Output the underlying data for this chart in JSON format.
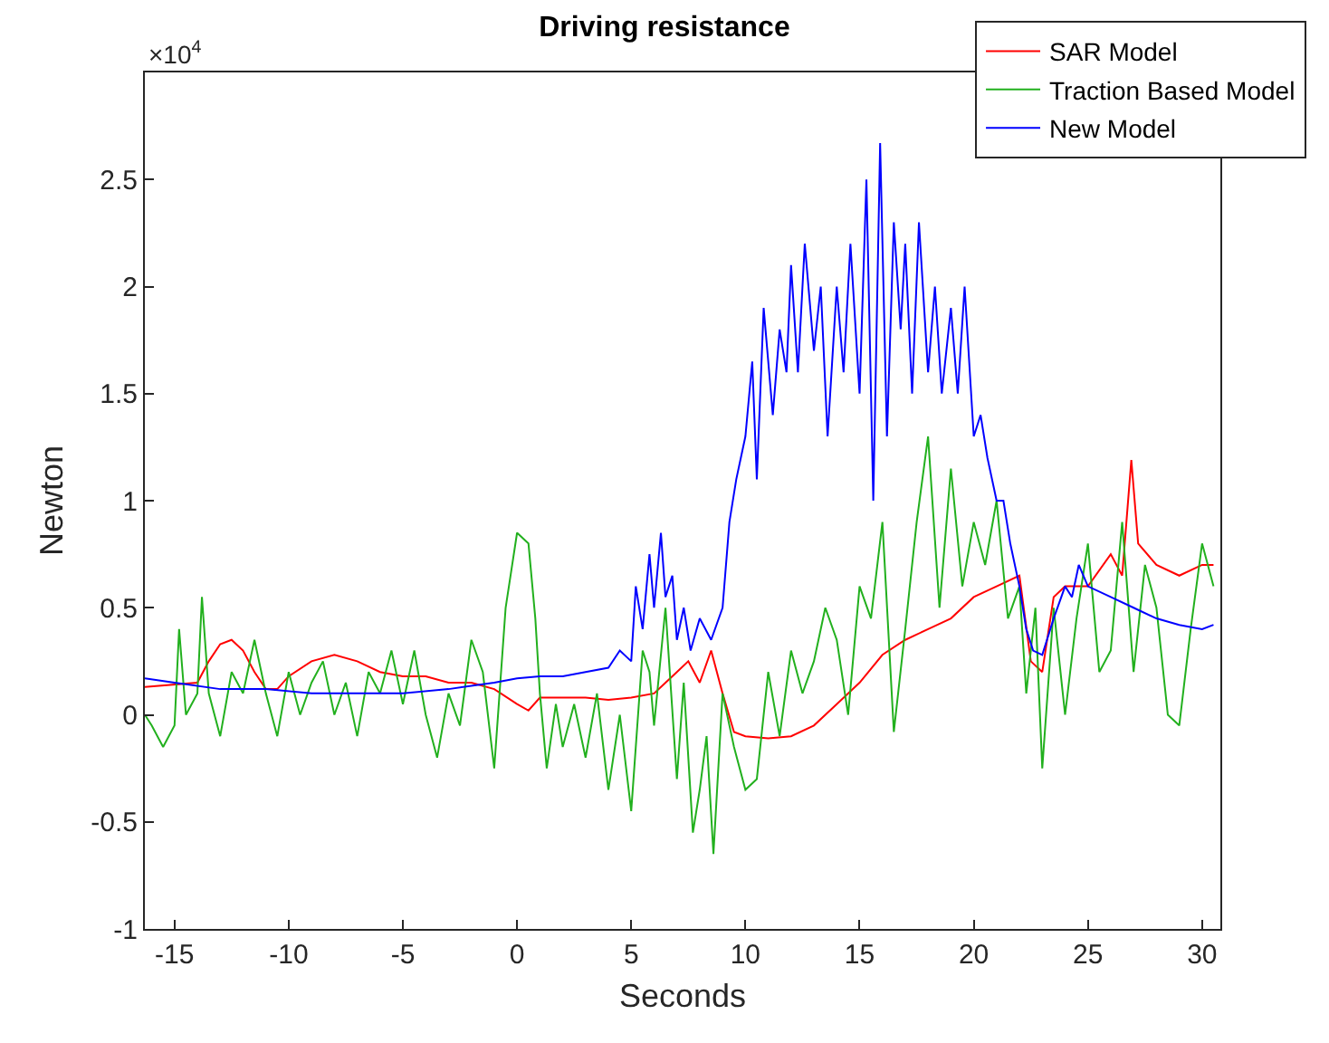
{
  "chart_data": {
    "type": "line",
    "title": "Driving resistance",
    "xlabel": "Seconds",
    "ylabel": "Newton",
    "annotations": [
      "×10$^{4}$"
    ],
    "xlim": [
      -16.3,
      30.8
    ],
    "xticks": [
      -15,
      -10,
      -5,
      0,
      5,
      10,
      15,
      20,
      25,
      30
    ],
    "ylim": [
      -1,
      3
    ],
    "yticks": [
      -1,
      -0.5,
      0,
      0.5,
      1,
      1.5,
      2,
      2.5
    ],
    "grid": false,
    "legend": "top right",
    "line_style": "solid",
    "marker": "none",
    "series": [
      {
        "name": "SAR Model",
        "color": "#ff0000",
        "x": [
          -16.3,
          -14,
          -13.5,
          -13,
          -12.5,
          -12,
          -11.5,
          -11,
          -10.5,
          -10,
          -9,
          -8,
          -7,
          -6,
          -5,
          -4,
          -3,
          -2,
          -1,
          0,
          0.5,
          1,
          2,
          3,
          4,
          5,
          6,
          7,
          7.5,
          8,
          8.5,
          9,
          9.5,
          10,
          11,
          12,
          13,
          14,
          15,
          16,
          17,
          18,
          19,
          20,
          21,
          22,
          22.5,
          23,
          23.5,
          24,
          25,
          26,
          26.5,
          26.9,
          27.2,
          28,
          29,
          30,
          30.5
        ],
        "values": [
          0.13,
          0.15,
          0.25,
          0.33,
          0.35,
          0.3,
          0.2,
          0.12,
          0.12,
          0.18,
          0.25,
          0.28,
          0.25,
          0.2,
          0.18,
          0.18,
          0.15,
          0.15,
          0.12,
          0.05,
          0.02,
          0.08,
          0.08,
          0.08,
          0.07,
          0.08,
          0.1,
          0.2,
          0.25,
          0.15,
          0.3,
          0.1,
          -0.08,
          -0.1,
          -0.11,
          -0.1,
          -0.05,
          0.05,
          0.15,
          0.28,
          0.35,
          0.4,
          0.45,
          0.55,
          0.6,
          0.65,
          0.25,
          0.2,
          0.55,
          0.6,
          0.6,
          0.75,
          0.65,
          1.19,
          0.8,
          0.7,
          0.65,
          0.7,
          0.7
        ]
      },
      {
        "name": "Traction Based Model",
        "color": "#22b01e",
        "x": [
          -16.3,
          -16,
          -15.5,
          -15,
          -14.8,
          -14.5,
          -14,
          -13.8,
          -13.5,
          -13,
          -12.5,
          -12,
          -11.5,
          -11,
          -10.5,
          -10,
          -9.5,
          -9,
          -8.5,
          -8,
          -7.5,
          -7,
          -6.5,
          -6,
          -5.5,
          -5,
          -4.5,
          -4,
          -3.5,
          -3,
          -2.5,
          -2,
          -1.5,
          -1,
          -0.5,
          0,
          0.5,
          0.8,
          1,
          1.3,
          1.7,
          2,
          2.5,
          3,
          3.5,
          4,
          4.5,
          5,
          5.5,
          5.8,
          6,
          6.5,
          7,
          7.3,
          7.7,
          8,
          8.3,
          8.6,
          9,
          9.5,
          10,
          10.5,
          11,
          11.5,
          12,
          12.5,
          13,
          13.5,
          14,
          14.5,
          15,
          15.5,
          16,
          16.5,
          17,
          17.5,
          18,
          18.5,
          19,
          19.5,
          20,
          20.5,
          21,
          21.5,
          22,
          22.3,
          22.7,
          23,
          23.5,
          24,
          24.5,
          25,
          25.5,
          26,
          26.5,
          27,
          27.5,
          28,
          28.5,
          29,
          29.5,
          30,
          30.5
        ],
        "values": [
          0,
          -0.05,
          -0.15,
          -0.05,
          0.4,
          0,
          0.1,
          0.55,
          0.1,
          -0.1,
          0.2,
          0.1,
          0.35,
          0.1,
          -0.1,
          0.2,
          0,
          0.15,
          0.25,
          0,
          0.15,
          -0.1,
          0.2,
          0.1,
          0.3,
          0.05,
          0.3,
          0,
          -0.2,
          0.1,
          -0.05,
          0.35,
          0.2,
          -0.25,
          0.5,
          0.85,
          0.8,
          0.45,
          0.1,
          -0.25,
          0.05,
          -0.15,
          0.05,
          -0.2,
          0.1,
          -0.35,
          0,
          -0.45,
          0.3,
          0.2,
          -0.05,
          0.5,
          -0.3,
          0.15,
          -0.55,
          -0.35,
          -0.1,
          -0.65,
          0.1,
          -0.15,
          -0.35,
          -0.3,
          0.2,
          -0.1,
          0.3,
          0.1,
          0.25,
          0.5,
          0.35,
          0,
          0.6,
          0.45,
          0.9,
          -0.08,
          0.4,
          0.9,
          1.3,
          0.5,
          1.15,
          0.6,
          0.9,
          0.7,
          1,
          0.45,
          0.6,
          0.1,
          0.5,
          -0.25,
          0.5,
          0,
          0.45,
          0.8,
          0.2,
          0.3,
          0.9,
          0.2,
          0.7,
          0.5,
          0,
          -0.05,
          0.4,
          0.8,
          0.6
        ]
      },
      {
        "name": "New Model",
        "color": "#0000ff",
        "x": [
          -16.3,
          -15,
          -13,
          -11,
          -9,
          -7,
          -5,
          -3,
          -1,
          0,
          1,
          2,
          3,
          4,
          4.5,
          5,
          5.2,
          5.5,
          5.8,
          6,
          6.3,
          6.5,
          6.8,
          7,
          7.3,
          7.6,
          8,
          8.5,
          9,
          9.3,
          9.6,
          10,
          10.3,
          10.5,
          10.8,
          11.2,
          11.5,
          11.8,
          12,
          12.3,
          12.6,
          13,
          13.3,
          13.6,
          14,
          14.3,
          14.6,
          15,
          15.3,
          15.6,
          15.9,
          16.2,
          16.5,
          16.8,
          17,
          17.3,
          17.6,
          18,
          18.3,
          18.6,
          19,
          19.3,
          19.6,
          20,
          20.3,
          20.6,
          21,
          21.3,
          21.6,
          22,
          22.3,
          22.6,
          23,
          23.5,
          24,
          24.3,
          24.6,
          25,
          26,
          27,
          28,
          29,
          30,
          30.5
        ],
        "values": [
          0.17,
          0.15,
          0.12,
          0.12,
          0.1,
          0.1,
          0.1,
          0.12,
          0.15,
          0.17,
          0.18,
          0.18,
          0.2,
          0.22,
          0.3,
          0.25,
          0.6,
          0.4,
          0.75,
          0.5,
          0.85,
          0.55,
          0.65,
          0.35,
          0.5,
          0.3,
          0.45,
          0.35,
          0.5,
          0.9,
          1.1,
          1.3,
          1.65,
          1.1,
          1.9,
          1.4,
          1.8,
          1.6,
          2.1,
          1.6,
          2.2,
          1.7,
          2,
          1.3,
          2,
          1.6,
          2.2,
          1.5,
          2.5,
          1,
          2.67,
          1.3,
          2.3,
          1.8,
          2.2,
          1.5,
          2.3,
          1.6,
          2,
          1.5,
          1.9,
          1.5,
          2,
          1.3,
          1.4,
          1.2,
          1,
          1,
          0.8,
          0.6,
          0.4,
          0.3,
          0.28,
          0.45,
          0.6,
          0.55,
          0.7,
          0.6,
          0.55,
          0.5,
          0.45,
          0.42,
          0.4,
          0.42
        ]
      }
    ]
  }
}
